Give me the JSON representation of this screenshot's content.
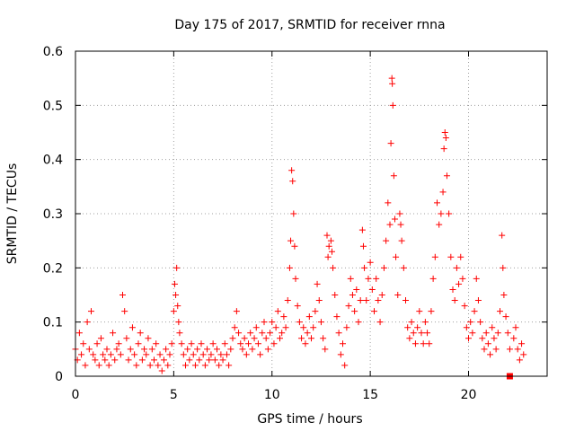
{
  "chart_data": {
    "type": "scatter",
    "title": "Day 175 of 2017, SRMTID for receiver rnna",
    "xlabel": "GPS time / hours",
    "ylabel": "SRMTID / TECUs",
    "xlim": [
      0,
      24
    ],
    "ylim": [
      0,
      0.6
    ],
    "x_ticks": [
      0,
      5,
      10,
      15,
      20
    ],
    "x_tick_labels": [
      "0",
      "5",
      "10",
      "15",
      "20"
    ],
    "y_ticks": [
      0,
      0.1,
      0.2,
      0.3,
      0.4,
      0.5,
      0.6
    ],
    "y_tick_labels": [
      "0",
      "0.1",
      "0.2",
      "0.3",
      "0.4",
      "0.5",
      "0.6"
    ],
    "grid": true,
    "marker": "plus",
    "color": "#ff0000",
    "series": [
      {
        "name": "SRMTID",
        "points": [
          [
            0.0,
            0.05
          ],
          [
            0.1,
            0.03
          ],
          [
            0.2,
            0.08
          ],
          [
            0.3,
            0.04
          ],
          [
            0.4,
            0.06
          ],
          [
            0.5,
            0.02
          ],
          [
            0.6,
            0.1
          ],
          [
            0.7,
            0.05
          ],
          [
            0.8,
            0.12
          ],
          [
            0.9,
            0.04
          ],
          [
            1.0,
            0.03
          ],
          [
            1.1,
            0.06
          ],
          [
            1.2,
            0.02
          ],
          [
            1.3,
            0.07
          ],
          [
            1.4,
            0.04
          ],
          [
            1.5,
            0.03
          ],
          [
            1.6,
            0.05
          ],
          [
            1.7,
            0.02
          ],
          [
            1.8,
            0.04
          ],
          [
            1.9,
            0.08
          ],
          [
            2.0,
            0.03
          ],
          [
            2.1,
            0.05
          ],
          [
            2.2,
            0.06
          ],
          [
            2.3,
            0.04
          ],
          [
            2.4,
            0.15
          ],
          [
            2.5,
            0.12
          ],
          [
            2.6,
            0.07
          ],
          [
            2.7,
            0.03
          ],
          [
            2.8,
            0.05
          ],
          [
            2.9,
            0.09
          ],
          [
            3.0,
            0.04
          ],
          [
            3.1,
            0.02
          ],
          [
            3.2,
            0.06
          ],
          [
            3.3,
            0.08
          ],
          [
            3.4,
            0.03
          ],
          [
            3.5,
            0.05
          ],
          [
            3.6,
            0.04
          ],
          [
            3.7,
            0.07
          ],
          [
            3.8,
            0.02
          ],
          [
            3.9,
            0.05
          ],
          [
            4.0,
            0.03
          ],
          [
            4.1,
            0.06
          ],
          [
            4.2,
            0.02
          ],
          [
            4.3,
            0.04
          ],
          [
            4.4,
            0.01
          ],
          [
            4.5,
            0.03
          ],
          [
            4.6,
            0.05
          ],
          [
            4.7,
            0.02
          ],
          [
            4.8,
            0.04
          ],
          [
            4.9,
            0.06
          ],
          [
            5.0,
            0.12
          ],
          [
            5.05,
            0.17
          ],
          [
            5.1,
            0.15
          ],
          [
            5.15,
            0.2
          ],
          [
            5.2,
            0.13
          ],
          [
            5.25,
            0.1
          ],
          [
            5.3,
            0.08
          ],
          [
            5.4,
            0.06
          ],
          [
            5.5,
            0.04
          ],
          [
            5.6,
            0.02
          ],
          [
            5.7,
            0.05
          ],
          [
            5.8,
            0.03
          ],
          [
            5.9,
            0.06
          ],
          [
            6.0,
            0.04
          ],
          [
            6.1,
            0.02
          ],
          [
            6.2,
            0.05
          ],
          [
            6.3,
            0.03
          ],
          [
            6.4,
            0.06
          ],
          [
            6.5,
            0.04
          ],
          [
            6.6,
            0.02
          ],
          [
            6.7,
            0.05
          ],
          [
            6.8,
            0.03
          ],
          [
            6.9,
            0.04
          ],
          [
            7.0,
            0.06
          ],
          [
            7.1,
            0.03
          ],
          [
            7.2,
            0.05
          ],
          [
            7.3,
            0.02
          ],
          [
            7.4,
            0.04
          ],
          [
            7.5,
            0.03
          ],
          [
            7.6,
            0.06
          ],
          [
            7.7,
            0.04
          ],
          [
            7.8,
            0.02
          ],
          [
            7.9,
            0.05
          ],
          [
            8.0,
            0.07
          ],
          [
            8.1,
            0.09
          ],
          [
            8.2,
            0.12
          ],
          [
            8.3,
            0.08
          ],
          [
            8.4,
            0.06
          ],
          [
            8.5,
            0.05
          ],
          [
            8.6,
            0.07
          ],
          [
            8.7,
            0.04
          ],
          [
            8.8,
            0.06
          ],
          [
            8.9,
            0.08
          ],
          [
            9.0,
            0.05
          ],
          [
            9.1,
            0.07
          ],
          [
            9.2,
            0.09
          ],
          [
            9.3,
            0.06
          ],
          [
            9.4,
            0.04
          ],
          [
            9.5,
            0.08
          ],
          [
            9.6,
            0.1
          ],
          [
            9.7,
            0.07
          ],
          [
            9.8,
            0.05
          ],
          [
            9.9,
            0.08
          ],
          [
            10.0,
            0.1
          ],
          [
            10.1,
            0.06
          ],
          [
            10.2,
            0.09
          ],
          [
            10.3,
            0.12
          ],
          [
            10.4,
            0.07
          ],
          [
            10.5,
            0.08
          ],
          [
            10.6,
            0.11
          ],
          [
            10.7,
            0.09
          ],
          [
            10.8,
            0.14
          ],
          [
            10.9,
            0.2
          ],
          [
            10.95,
            0.25
          ],
          [
            11.0,
            0.38
          ],
          [
            11.05,
            0.36
          ],
          [
            11.1,
            0.3
          ],
          [
            11.15,
            0.24
          ],
          [
            11.2,
            0.18
          ],
          [
            11.3,
            0.13
          ],
          [
            11.4,
            0.1
          ],
          [
            11.5,
            0.07
          ],
          [
            11.6,
            0.09
          ],
          [
            11.7,
            0.06
          ],
          [
            11.8,
            0.08
          ],
          [
            11.9,
            0.11
          ],
          [
            12.0,
            0.07
          ],
          [
            12.1,
            0.09
          ],
          [
            12.2,
            0.12
          ],
          [
            12.3,
            0.17
          ],
          [
            12.4,
            0.14
          ],
          [
            12.5,
            0.1
          ],
          [
            12.6,
            0.07
          ],
          [
            12.7,
            0.05
          ],
          [
            12.8,
            0.26
          ],
          [
            12.85,
            0.22
          ],
          [
            12.9,
            0.24
          ],
          [
            13.0,
            0.25
          ],
          [
            13.05,
            0.23
          ],
          [
            13.1,
            0.2
          ],
          [
            13.2,
            0.15
          ],
          [
            13.3,
            0.11
          ],
          [
            13.4,
            0.08
          ],
          [
            13.5,
            0.04
          ],
          [
            13.6,
            0.06
          ],
          [
            13.7,
            0.02
          ],
          [
            13.8,
            0.09
          ],
          [
            13.9,
            0.13
          ],
          [
            14.0,
            0.18
          ],
          [
            14.1,
            0.15
          ],
          [
            14.2,
            0.12
          ],
          [
            14.3,
            0.16
          ],
          [
            14.4,
            0.1
          ],
          [
            14.5,
            0.14
          ],
          [
            14.6,
            0.27
          ],
          [
            14.65,
            0.24
          ],
          [
            14.7,
            0.2
          ],
          [
            14.8,
            0.14
          ],
          [
            14.9,
            0.18
          ],
          [
            15.0,
            0.21
          ],
          [
            15.1,
            0.16
          ],
          [
            15.2,
            0.12
          ],
          [
            15.3,
            0.18
          ],
          [
            15.4,
            0.14
          ],
          [
            15.5,
            0.1
          ],
          [
            15.6,
            0.15
          ],
          [
            15.7,
            0.2
          ],
          [
            15.8,
            0.25
          ],
          [
            15.9,
            0.32
          ],
          [
            16.0,
            0.28
          ],
          [
            16.05,
            0.43
          ],
          [
            16.1,
            0.55
          ],
          [
            16.12,
            0.54
          ],
          [
            16.15,
            0.5
          ],
          [
            16.2,
            0.37
          ],
          [
            16.25,
            0.29
          ],
          [
            16.3,
            0.22
          ],
          [
            16.4,
            0.15
          ],
          [
            16.5,
            0.3
          ],
          [
            16.55,
            0.28
          ],
          [
            16.6,
            0.25
          ],
          [
            16.7,
            0.2
          ],
          [
            16.8,
            0.14
          ],
          [
            16.9,
            0.09
          ],
          [
            17.0,
            0.07
          ],
          [
            17.1,
            0.1
          ],
          [
            17.2,
            0.08
          ],
          [
            17.3,
            0.06
          ],
          [
            17.4,
            0.09
          ],
          [
            17.5,
            0.12
          ],
          [
            17.6,
            0.08
          ],
          [
            17.7,
            0.06
          ],
          [
            17.8,
            0.1
          ],
          [
            17.9,
            0.08
          ],
          [
            18.0,
            0.06
          ],
          [
            18.1,
            0.12
          ],
          [
            18.2,
            0.18
          ],
          [
            18.3,
            0.22
          ],
          [
            18.4,
            0.32
          ],
          [
            18.5,
            0.28
          ],
          [
            18.6,
            0.3
          ],
          [
            18.7,
            0.34
          ],
          [
            18.75,
            0.42
          ],
          [
            18.8,
            0.45
          ],
          [
            18.85,
            0.44
          ],
          [
            18.9,
            0.37
          ],
          [
            19.0,
            0.3
          ],
          [
            19.1,
            0.22
          ],
          [
            19.2,
            0.16
          ],
          [
            19.3,
            0.14
          ],
          [
            19.4,
            0.2
          ],
          [
            19.5,
            0.17
          ],
          [
            19.6,
            0.22
          ],
          [
            19.7,
            0.18
          ],
          [
            19.8,
            0.13
          ],
          [
            19.9,
            0.09
          ],
          [
            20.0,
            0.07
          ],
          [
            20.1,
            0.1
          ],
          [
            20.2,
            0.08
          ],
          [
            20.3,
            0.12
          ],
          [
            20.4,
            0.18
          ],
          [
            20.5,
            0.14
          ],
          [
            20.6,
            0.1
          ],
          [
            20.7,
            0.07
          ],
          [
            20.8,
            0.05
          ],
          [
            20.9,
            0.08
          ],
          [
            21.0,
            0.06
          ],
          [
            21.1,
            0.04
          ],
          [
            21.2,
            0.09
          ],
          [
            21.3,
            0.07
          ],
          [
            21.4,
            0.05
          ],
          [
            21.5,
            0.08
          ],
          [
            21.6,
            0.12
          ],
          [
            21.7,
            0.26
          ],
          [
            21.75,
            0.2
          ],
          [
            21.8,
            0.15
          ],
          [
            21.9,
            0.11
          ],
          [
            22.0,
            0.08
          ],
          [
            22.1,
            0.05
          ],
          [
            22.3,
            0.07
          ],
          [
            22.4,
            0.09
          ],
          [
            22.5,
            0.05
          ],
          [
            22.6,
            0.03
          ],
          [
            22.7,
            0.06
          ],
          [
            22.8,
            0.04
          ]
        ]
      },
      {
        "name": "marker",
        "points": [
          [
            22.1,
            0.0
          ]
        ],
        "marker": "square"
      }
    ]
  }
}
